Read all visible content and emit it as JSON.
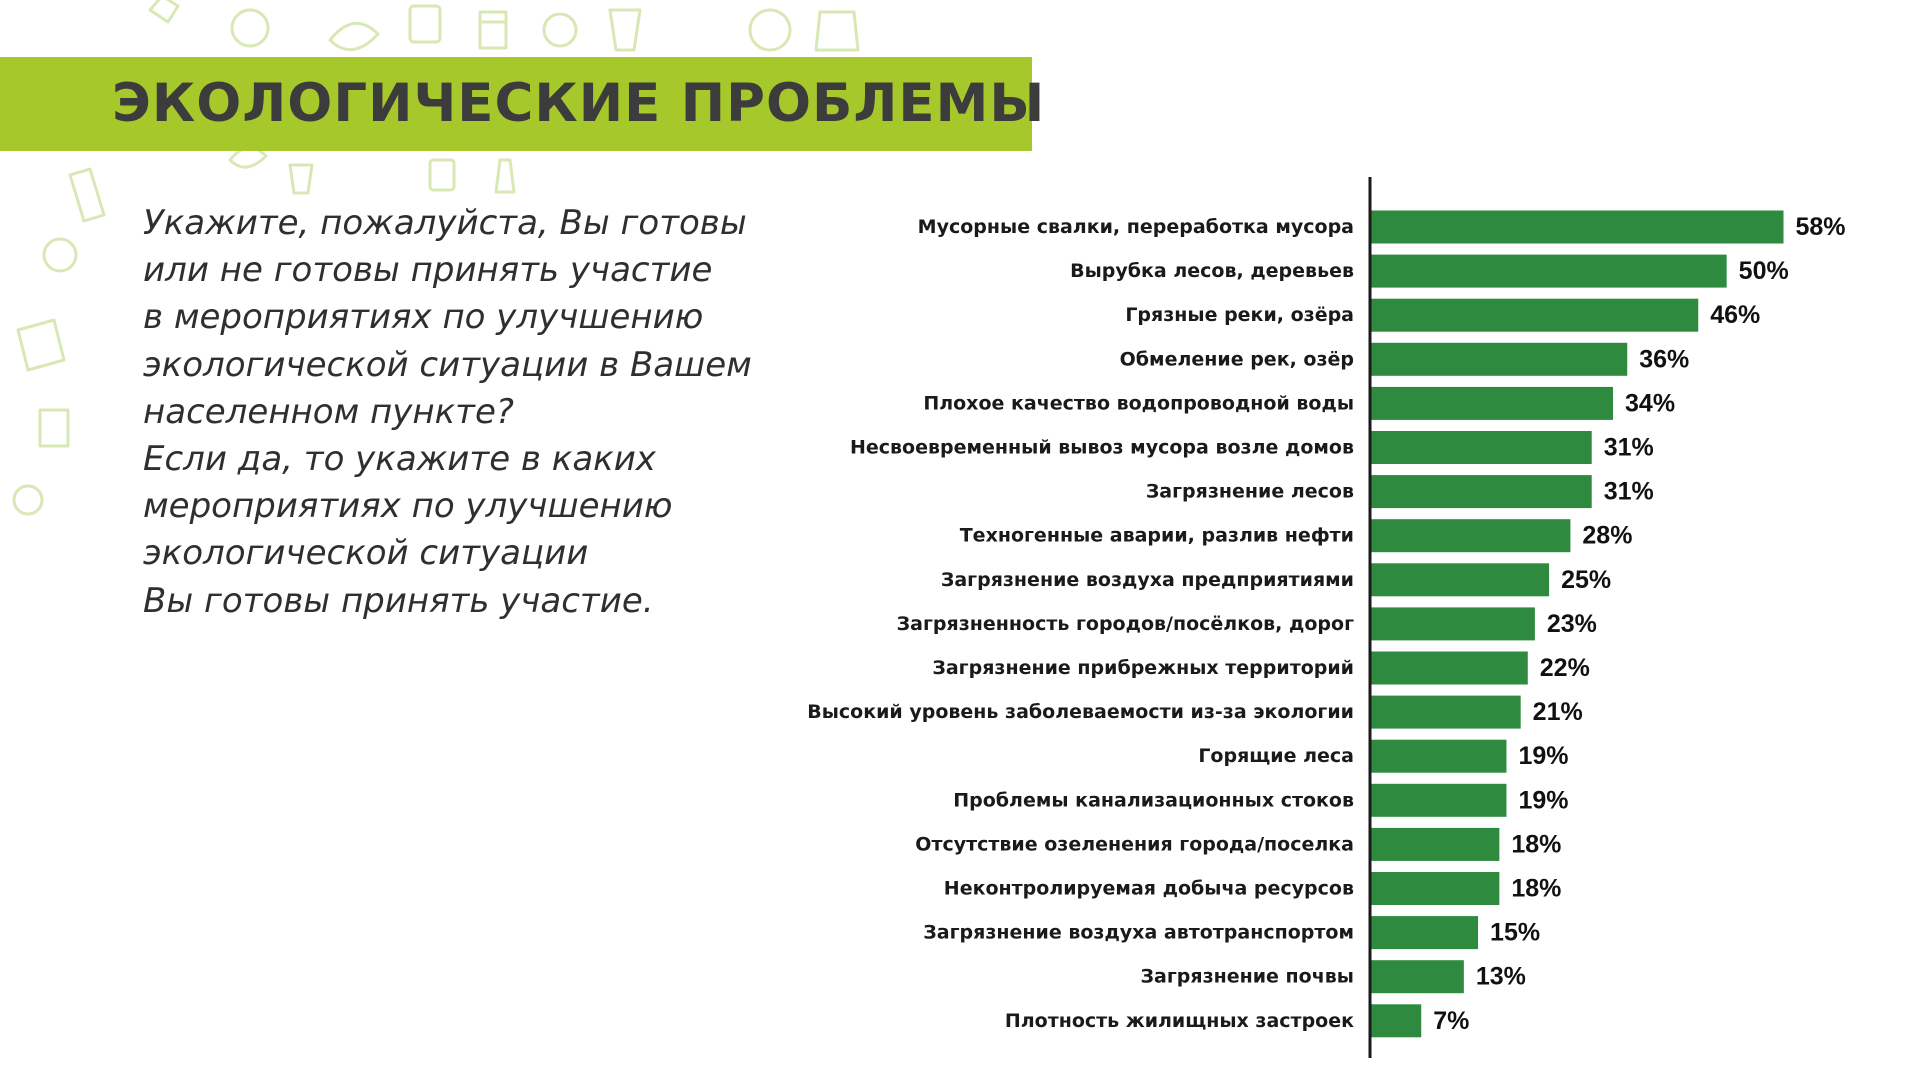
{
  "title": "ЭКОЛОГИЧЕСКИЕ ПРОБЛЕМЫ",
  "question_lines": [
    "Укажите, пожалуйста, Вы готовы",
    "или не готовы принять участие",
    "в мероприятиях по улучшению",
    "экологической ситуации в Вашем",
    "населенном пункте?",
    "Если да, то укажите в каких",
    "мероприятиях по улучшению",
    "экологической ситуации",
    "Вы готовы принять участие."
  ],
  "colors": {
    "banner": "#a6c82a",
    "bar": "#2e8a3f",
    "axis": "#1a1a1a",
    "doodle": "#b9d77a"
  },
  "chart_data": {
    "type": "bar",
    "orientation": "horizontal",
    "categories": [
      "Мусорные свалки, переработка мусора",
      "Вырубка лесов, деревьев",
      "Грязные реки, озёра",
      "Обмеление рек, озёр",
      "Плохое качество водопроводной воды",
      "Несвоевременный вывоз мусора возле домов",
      "Загрязнение лесов",
      "Техногенные аварии, разлив нефти",
      "Загрязнение воздуха предприятиями",
      "Загрязненность городов/посёлков, дорог",
      "Загрязнение прибрежных территорий",
      "Высокий уровень заболеваемости из-за экологии",
      "Горящие леса",
      "Проблемы канализационных стоков",
      "Отсутствие озеленения города/поселка",
      "Неконтролируемая добыча ресурсов",
      "Загрязнение воздуха автотранспортом",
      "Загрязнение почвы",
      "Плотность жилищных застроек"
    ],
    "values": [
      58,
      50,
      46,
      36,
      34,
      31,
      31,
      28,
      25,
      23,
      22,
      21,
      19,
      19,
      18,
      18,
      15,
      13,
      7
    ],
    "value_labels": [
      "58%",
      "50%",
      "46%",
      "36%",
      "34%",
      "31%",
      "31%",
      "28%",
      "25%",
      "23%",
      "22%",
      "21%",
      "19%",
      "19%",
      "18%",
      "18%",
      "15%",
      "13%",
      "7%"
    ],
    "xlim": [
      0,
      58
    ],
    "grid": false,
    "legend": "none"
  }
}
